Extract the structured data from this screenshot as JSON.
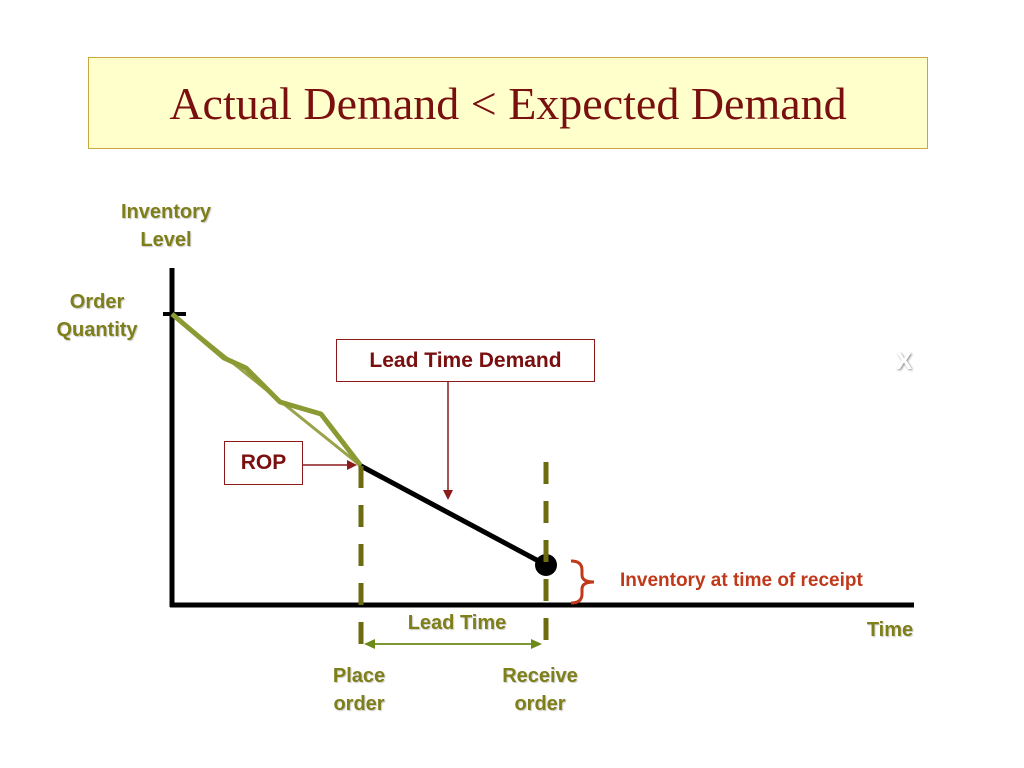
{
  "title": "Actual Demand < Expected Demand",
  "labels": {
    "inventory_level": "Inventory\nLevel",
    "order_quantity": "Order\nQuantity",
    "time": "Time",
    "lead_time": "Lead Time",
    "place_order": "Place\norder",
    "receive_order": "Receive\norder",
    "rop": "ROP",
    "lead_time_demand": "Lead Time Demand",
    "inventory_at_receipt": "Inventory at time of receipt",
    "x_mark": "X"
  },
  "colors": {
    "title_text": "#7a0f0f",
    "title_fill": "#ffffcc",
    "olive": "#7f7f1a",
    "line_green": "#8c9a33",
    "dashed": "#6b6b10",
    "red": "#c0391b",
    "dark_red": "#8b1a1a"
  }
}
